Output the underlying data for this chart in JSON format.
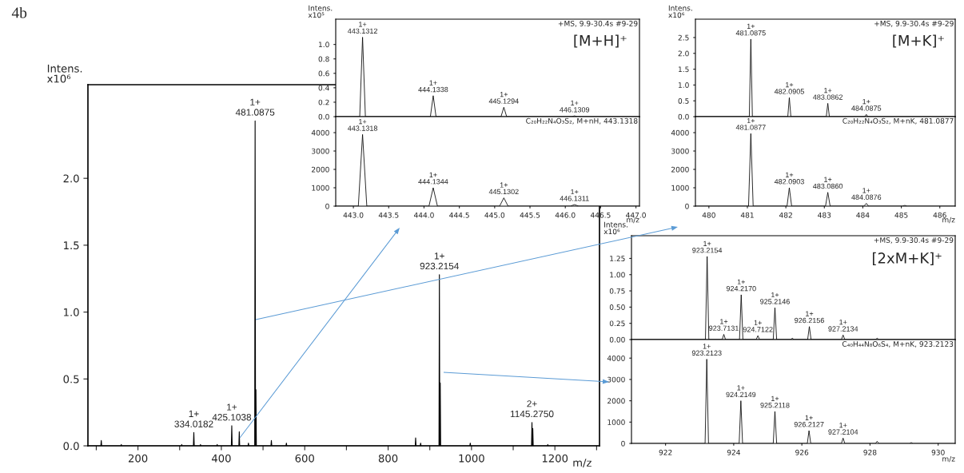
{
  "chart_data": [
    {
      "type": "line",
      "xlabel": "m/z",
      "ylabel": "Intens.\nx10⁶",
      "x": [
        80,
        111,
        112,
        113,
        159,
        160,
        161,
        304,
        305,
        306,
        333,
        334,
        335,
        349,
        350,
        351,
        389,
        390,
        391,
        424,
        425,
        426,
        442,
        443,
        444,
        464,
        465,
        466,
        480,
        481,
        482,
        483,
        484,
        519,
        520,
        521,
        555,
        556,
        557,
        865,
        866,
        867,
        877,
        878,
        879,
        922,
        923,
        924,
        925,
        926,
        996,
        997,
        998,
        1144,
        1145,
        1146,
        1147,
        1148,
        1182,
        1183,
        1184,
        1307
      ],
      "series": [
        {
          "color": "#000000",
          "values": [
            0,
            0,
            0.04,
            0,
            0,
            0.01,
            0,
            0,
            0.01,
            0,
            0,
            0.1,
            0,
            0,
            0.01,
            0,
            0,
            0.01,
            0,
            0,
            0.15,
            0,
            0,
            0.105,
            0,
            0,
            0.02,
            0,
            0,
            2.43,
            0,
            0.42,
            0,
            0,
            0.04,
            0,
            0,
            0.02,
            0,
            0,
            0.06,
            0,
            0,
            0.02,
            0,
            0,
            1.28,
            0,
            0.47,
            0,
            0,
            0.02,
            0,
            0,
            0.175,
            0,
            0.13,
            0,
            0,
            0.01,
            0,
            0
          ]
        }
      ],
      "xlim": [
        80,
        1307
      ],
      "ylim": [
        0,
        2.7
      ],
      "xticks": [
        {
          "value": 100,
          "label": null
        },
        200,
        {
          "value": 300,
          "label": null
        },
        400,
        {
          "value": 500,
          "label": null
        },
        600,
        {
          "value": 700,
          "label": null
        },
        800,
        {
          "value": 900,
          "label": null
        },
        1000,
        {
          "value": 1100,
          "label": null
        },
        1200,
        {
          "value": 1300,
          "label": null
        }
      ],
      "yticks": [
        {
          "value": 0,
          "label": "0.0"
        },
        0.5,
        {
          "value": 1,
          "label": "1.0"
        },
        1.5,
        {
          "value": 2,
          "label": "2.0"
        }
      ],
      "annotations": [
        "4b",
        {
          "text": "1+\n481.0875",
          "x": 481,
          "y": 2.43
        },
        {
          "text": "1+\n334.0182",
          "x": 334,
          "y": 0.1
        },
        {
          "text": "1+\n425.1038",
          "x": 425,
          "y": 0.15
        },
        {
          "text": "1+\n923.2154",
          "x": 923,
          "y": 1.28
        },
        {
          "text": "2+\n1145.2750",
          "x": 1145,
          "y": 0.175
        }
      ]
    },
    {
      "type": "line",
      "ylabel": "Intens.\nx10⁵",
      "tick_labels": "y",
      "x": [
        442.75,
        443.09,
        443.13,
        443.17,
        444.09,
        444.13,
        444.17,
        445.09,
        445.13,
        445.17,
        446.09,
        446.13,
        446.17,
        447.05
      ],
      "series": [
        {
          "color": "#000000",
          "values": [
            0,
            0,
            1.1,
            0,
            0,
            0.29,
            0,
            0,
            0.13,
            0,
            0,
            0.01,
            0,
            0
          ]
        }
      ],
      "xlim": [
        442.75,
        447.05
      ],
      "ylim": [
        0,
        1.35
      ],
      "yticks": [
        {
          "value": 0,
          "label": "0.0"
        },
        0.2,
        0.4,
        0.6,
        0.8,
        {
          "value": 1,
          "label": "1.0"
        }
      ],
      "annotations": [
        "+MS, 9.9-30.4s #9-29",
        "[M+H]⁺",
        {
          "text": "1+\n443.1312",
          "x": 443.13,
          "y": 1.1
        },
        {
          "text": "1+\n444.1338",
          "x": 444.13,
          "y": 0.29
        },
        {
          "text": "1+\n445.1294",
          "x": 445.13,
          "y": 0.13
        },
        {
          "text": "1+\n446.1309",
          "x": 446.13,
          "y": 0.01
        }
      ]
    },
    {
      "type": "line",
      "xlabel": "m/z",
      "x": [
        442.75,
        443.07,
        443.13,
        443.19,
        444.07,
        444.13,
        444.19,
        445.07,
        445.13,
        445.19,
        446.07,
        446.13,
        446.19,
        447.05
      ],
      "series": [
        {
          "color": "#000000",
          "values": [
            0,
            0,
            3900,
            0,
            0,
            1000,
            0,
            0,
            450,
            0,
            0,
            80,
            0,
            0
          ]
        }
      ],
      "xlim": [
        442.75,
        447.05
      ],
      "ylim": [
        0,
        4870
      ],
      "xticks": [
        {
          "value": 443,
          "label": "443.0"
        },
        443.5,
        {
          "value": 444,
          "label": "444.0"
        },
        444.5,
        {
          "value": 445,
          "label": "445.0"
        },
        445.5,
        {
          "value": 446,
          "label": "446.0"
        },
        446.5,
        {
          "value": 447,
          "label": "447.0"
        }
      ],
      "yticks": [
        0,
        1000,
        2000,
        3000,
        4000
      ],
      "annotations": [
        "C₂₀H₂₂N₄O₃S₂, M+nH, 443.1318",
        {
          "text": "1+\n443.1318",
          "x": 443.13,
          "y": 3900
        },
        {
          "text": "1+\n444.1344",
          "x": 444.13,
          "y": 1000
        },
        {
          "text": "1+\n445.1302",
          "x": 445.13,
          "y": 450
        },
        {
          "text": "1+\n446.1311",
          "x": 446.13,
          "y": 80
        }
      ]
    },
    {
      "type": "line",
      "ylabel": "Intens.\nx10⁶",
      "tick_labels": "y",
      "x": [
        479.65,
        481.05,
        481.09,
        481.13,
        482.05,
        482.09,
        482.13,
        483.05,
        483.09,
        483.13,
        484.05,
        484.09,
        484.13,
        486.4
      ],
      "series": [
        {
          "color": "#000000",
          "values": [
            0,
            0,
            2.45,
            0,
            0,
            0.6,
            0,
            0,
            0.42,
            0,
            0,
            0.07,
            0,
            0
          ]
        }
      ],
      "xlim": [
        479.65,
        486.4
      ],
      "ylim": [
        0,
        3.08
      ],
      "yticks": [
        {
          "value": 0,
          "label": "0.0"
        },
        0.5,
        {
          "value": 1,
          "label": "1.0"
        },
        1.5,
        {
          "value": 2,
          "label": "2.0"
        },
        2.5
      ],
      "annotations": [
        "+MS, 9.9-30.4s #9-29",
        "[M+K]⁺",
        {
          "text": "1+\n481.0875",
          "x": 481.09,
          "y": 2.45
        },
        {
          "text": "1+\n482.0905",
          "x": 482.09,
          "y": 0.6
        },
        {
          "text": "1+\n483.0862",
          "x": 483.09,
          "y": 0.42
        },
        {
          "text": "1+\n484.0875",
          "x": 484.09,
          "y": 0.07
        }
      ]
    },
    {
      "type": "line",
      "xlabel": "m/z",
      "x": [
        479.65,
        481.03,
        481.09,
        481.15,
        482.03,
        482.09,
        482.15,
        483.03,
        483.09,
        483.15,
        484.03,
        484.09,
        484.15,
        485.03,
        485.09,
        485.15,
        486.4
      ],
      "series": [
        {
          "color": "#000000",
          "values": [
            0,
            0,
            3950,
            0,
            0,
            1000,
            0,
            0,
            750,
            0,
            0,
            150,
            0,
            0,
            40,
            0,
            0
          ]
        }
      ],
      "xlim": [
        479.65,
        486.4
      ],
      "ylim": [
        0,
        4870
      ],
      "xticks": [
        480,
        481,
        482,
        483,
        484,
        485,
        486
      ],
      "yticks": [
        0,
        1000,
        2000,
        3000,
        4000
      ],
      "annotations": [
        "C₂₀H₂₂N₄O₃S₂, M+nK, 481.0877",
        {
          "text": "1+\n481.0877",
          "x": 481.09,
          "y": 3950
        },
        {
          "text": "1+\n482.0903",
          "x": 482.09,
          "y": 1000
        },
        {
          "text": "1+\n483.0860",
          "x": 483.09,
          "y": 750
        },
        {
          "text": "1+\n484.0876",
          "x": 484.09,
          "y": 150
        }
      ]
    },
    {
      "type": "line",
      "ylabel": "Intens.\nx10⁶",
      "tick_labels": "y",
      "x": [
        921,
        923.17,
        923.22,
        923.27,
        923.66,
        923.71,
        923.76,
        924.17,
        924.22,
        924.27,
        924.66,
        924.71,
        924.76,
        925.16,
        925.21,
        925.26,
        925.67,
        925.72,
        925.77,
        926.17,
        926.22,
        926.27,
        927.16,
        927.21,
        927.26,
        928.16,
        928.21,
        928.26,
        930.5
      ],
      "series": [
        {
          "color": "#000000",
          "values": [
            0,
            0,
            1.28,
            0,
            0,
            0.08,
            0,
            0,
            0.69,
            0,
            0,
            0.06,
            0,
            0,
            0.49,
            0,
            0,
            0.02,
            0,
            0,
            0.2,
            0,
            0,
            0.07,
            0,
            0,
            0.02,
            0,
            0
          ]
        }
      ],
      "xlim": [
        921,
        930.5
      ],
      "ylim": [
        0,
        1.6
      ],
      "yticks": [
        {
          "value": 0,
          "label": "0.00"
        },
        {
          "value": 0.25,
          "label": "0.25"
        },
        {
          "value": 0.5,
          "label": "0.50"
        },
        {
          "value": 0.75,
          "label": "0.75"
        },
        {
          "value": 1,
          "label": "1.00"
        },
        {
          "value": 1.25,
          "label": "1.25"
        }
      ],
      "annotations": [
        "+MS, 9.9-30.4s #9-29",
        "[2xM+K]⁺",
        {
          "text": "1+\n923.2154",
          "x": 923.22,
          "y": 1.28
        },
        {
          "text": "1+\n923.7131",
          "x": 923.71,
          "y": 0.08
        },
        {
          "text": "1+\n924.2170",
          "x": 924.22,
          "y": 0.69
        },
        {
          "text": "1+\n924.7122",
          "x": 924.71,
          "y": 0.06
        },
        {
          "text": "1+\n925.2146",
          "x": 925.21,
          "y": 0.49
        },
        {
          "text": "1+\n926.2156",
          "x": 926.22,
          "y": 0.2
        },
        {
          "text": "1+\n927.2134",
          "x": 927.21,
          "y": 0.07
        }
      ]
    },
    {
      "type": "line",
      "xlabel": "m/z",
      "x": [
        921,
        923.16,
        923.21,
        923.26,
        924.16,
        924.21,
        924.26,
        925.16,
        925.21,
        925.26,
        926.16,
        926.21,
        926.26,
        927.16,
        927.21,
        927.26,
        928.16,
        928.21,
        928.26,
        929.16,
        929.21,
        929.26,
        930.5
      ],
      "series": [
        {
          "color": "#000000",
          "values": [
            0,
            0,
            3950,
            0,
            0,
            2000,
            0,
            0,
            1500,
            0,
            0,
            600,
            0,
            0,
            250,
            0,
            0,
            100,
            0,
            0,
            40,
            0,
            0
          ]
        }
      ],
      "xlim": [
        921,
        930.5
      ],
      "ylim": [
        0,
        4870
      ],
      "xticks": [
        922,
        924,
        926,
        928,
        930
      ],
      "yticks": [
        0,
        1000,
        2000,
        3000,
        4000
      ],
      "annotations": [
        "C₄₀H₄₄N₈O₆S₄, M+nK, 923.2123",
        {
          "text": "1+\n923.2123",
          "x": 923.21,
          "y": 3950
        },
        {
          "text": "1+\n924.2149",
          "x": 924.21,
          "y": 2000
        },
        {
          "text": "1+\n925.2118",
          "x": 925.21,
          "y": 1500
        },
        {
          "text": "1+\n926.2127",
          "x": 926.21,
          "y": 600
        },
        {
          "text": "1+\n927.2104",
          "x": 927.21,
          "y": 250
        }
      ]
    }
  ]
}
